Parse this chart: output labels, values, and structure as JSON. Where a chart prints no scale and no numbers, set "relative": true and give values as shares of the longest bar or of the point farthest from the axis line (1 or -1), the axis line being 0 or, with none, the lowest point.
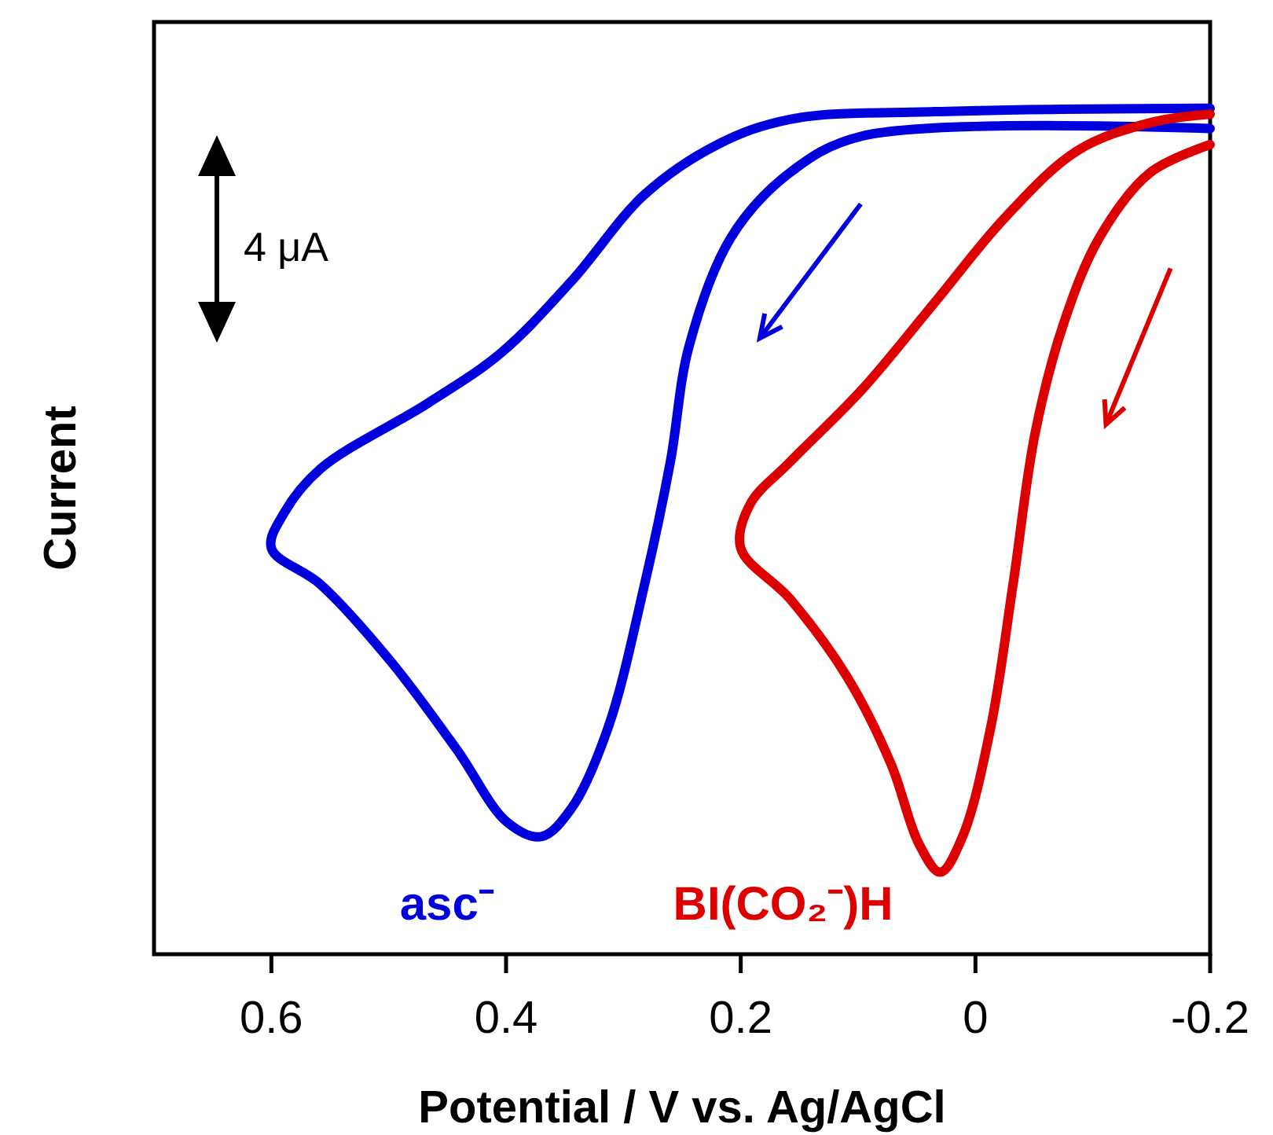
{
  "chart_data": {
    "type": "line",
    "relative": true,
    "xlabel": "Potential / V vs. Ag/AgCl",
    "ylabel": "Current",
    "xlim": [
      0.7,
      -0.2
    ],
    "xticks": [
      0.6,
      0.4,
      0.2,
      0,
      -0.2
    ],
    "annotations": [
      "4 μA"
    ],
    "series": [
      {
        "name": "asc⁻",
        "color": "#0000dd",
        "x": [
          -0.2,
          0.097,
          0.158,
          0.208,
          0.244,
          0.26,
          0.282,
          0.313,
          0.344,
          0.37,
          0.399,
          0.442,
          0.497,
          0.558,
          0.6,
          0.589,
          0.558,
          0.467,
          0.405,
          0.344,
          0.282,
          0.22,
          0.158,
          0.035,
          -0.2
        ],
        "values": [
          0.976,
          0.967,
          0.924,
          0.848,
          0.719,
          0.582,
          0.437,
          0.268,
          0.173,
          0.139,
          0.156,
          0.242,
          0.344,
          0.437,
          0.48,
          0.522,
          0.574,
          0.651,
          0.71,
          0.796,
          0.898,
          0.957,
          0.987,
          0.996,
          1.0
        ]
      },
      {
        "name": "BI(CO₂⁻)H",
        "color": "#dd0000",
        "x": [
          -0.2,
          -0.149,
          -0.106,
          -0.075,
          -0.051,
          -0.032,
          -0.013,
          0.011,
          0.03,
          0.048,
          0.072,
          0.109,
          0.158,
          0.2,
          0.192,
          0.158,
          0.097,
          0.035,
          -0.026,
          -0.087,
          -0.149,
          -0.2
        ],
        "values": [
          0.957,
          0.924,
          0.848,
          0.745,
          0.617,
          0.437,
          0.268,
          0.139,
          0.097,
          0.13,
          0.225,
          0.327,
          0.42,
          0.48,
          0.532,
          0.582,
          0.667,
          0.77,
          0.872,
          0.95,
          0.983,
          0.993
        ]
      }
    ]
  }
}
